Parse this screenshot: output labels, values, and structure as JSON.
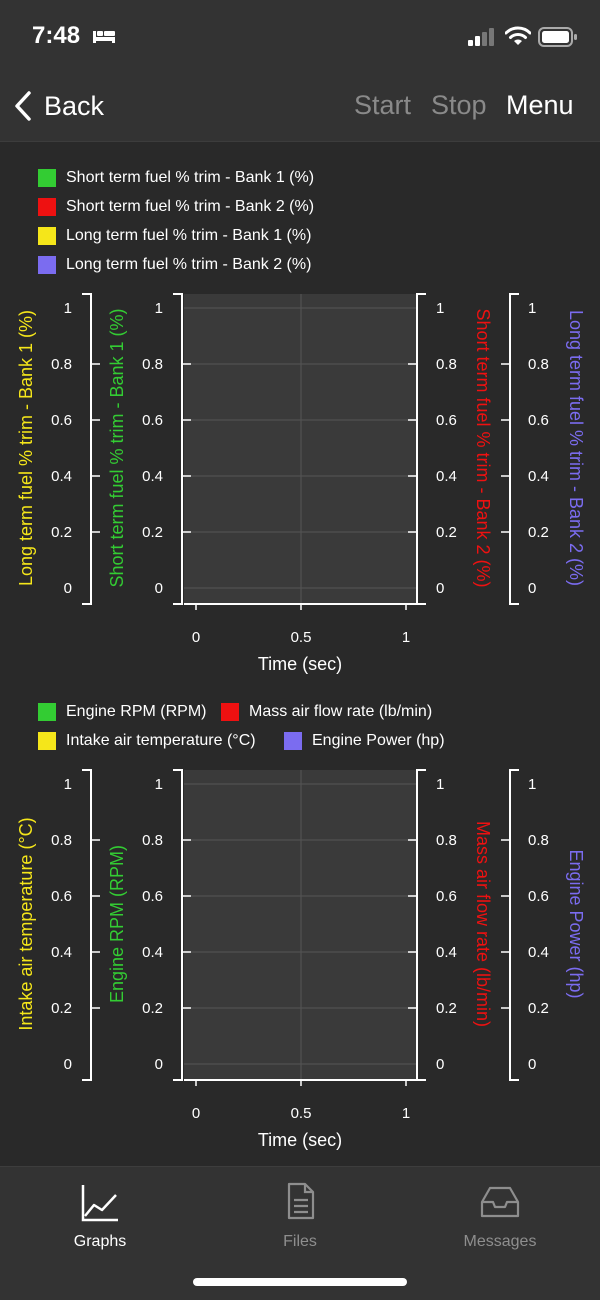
{
  "status": {
    "time": "7:48"
  },
  "nav": {
    "back_label": "Back",
    "start_label": "Start",
    "stop_label": "Stop",
    "menu_label": "Menu"
  },
  "colors": {
    "green": "#33cc33",
    "red": "#ee1111",
    "yellow": "#f5e61a",
    "purple": "#7b6cf0",
    "disabled": "#8a8a8a"
  },
  "chart_data": [
    {
      "type": "line",
      "legend": [
        {
          "label": "Short term fuel % trim - Bank 1 (%)",
          "color": "#33cc33"
        },
        {
          "label": "Short term fuel % trim - Bank 2 (%)",
          "color": "#ee1111"
        },
        {
          "label": "Long term fuel % trim - Bank 1 (%)",
          "color": "#f5e61a"
        },
        {
          "label": "Long term fuel % trim - Bank 2 (%)",
          "color": "#7b6cf0"
        }
      ],
      "xlabel": "Time (sec)",
      "xticks": [
        "0",
        "0.5",
        "1"
      ],
      "xlim": [
        0,
        1
      ],
      "ylim": [
        0,
        1
      ],
      "yticks": [
        "0",
        "0.2",
        "0.4",
        "0.6",
        "0.8",
        "1"
      ],
      "left_axes": [
        {
          "label": "Long term fuel % trim - Bank 1 (%)",
          "color": "#f5e61a"
        },
        {
          "label": "Short term fuel % trim - Bank 1 (%)",
          "color": "#33cc33"
        }
      ],
      "right_axes": [
        {
          "label": "Short term fuel % trim - Bank 2 (%)",
          "color": "#ee1111"
        },
        {
          "label": "Long term fuel % trim - Bank 2 (%)",
          "color": "#7b6cf0"
        }
      ],
      "series": [],
      "grid": true
    },
    {
      "type": "line",
      "legend": [
        {
          "label": "Engine RPM (RPM)",
          "color": "#33cc33"
        },
        {
          "label": "Mass air flow rate (lb/min)",
          "color": "#ee1111"
        },
        {
          "label": "Intake air temperature (°C)",
          "color": "#f5e61a"
        },
        {
          "label": "Engine Power (hp)",
          "color": "#7b6cf0"
        }
      ],
      "xlabel": "Time (sec)",
      "xticks": [
        "0",
        "0.5",
        "1"
      ],
      "xlim": [
        0,
        1
      ],
      "ylim": [
        0,
        1
      ],
      "yticks": [
        "0",
        "0.2",
        "0.4",
        "0.6",
        "0.8",
        "1"
      ],
      "left_axes": [
        {
          "label": "Intake air temperature (°C)",
          "color": "#f5e61a"
        },
        {
          "label": "Engine RPM (RPM)",
          "color": "#33cc33"
        }
      ],
      "right_axes": [
        {
          "label": "Mass air flow rate (lb/min)",
          "color": "#ee1111"
        },
        {
          "label": "Engine Power (hp)",
          "color": "#7b6cf0"
        }
      ],
      "series": [],
      "grid": true
    }
  ],
  "tabs": [
    {
      "label": "Graphs",
      "icon": "line-chart-icon",
      "active": true
    },
    {
      "label": "Files",
      "icon": "document-icon",
      "active": false
    },
    {
      "label": "Messages",
      "icon": "inbox-tray-icon",
      "active": false
    }
  ]
}
